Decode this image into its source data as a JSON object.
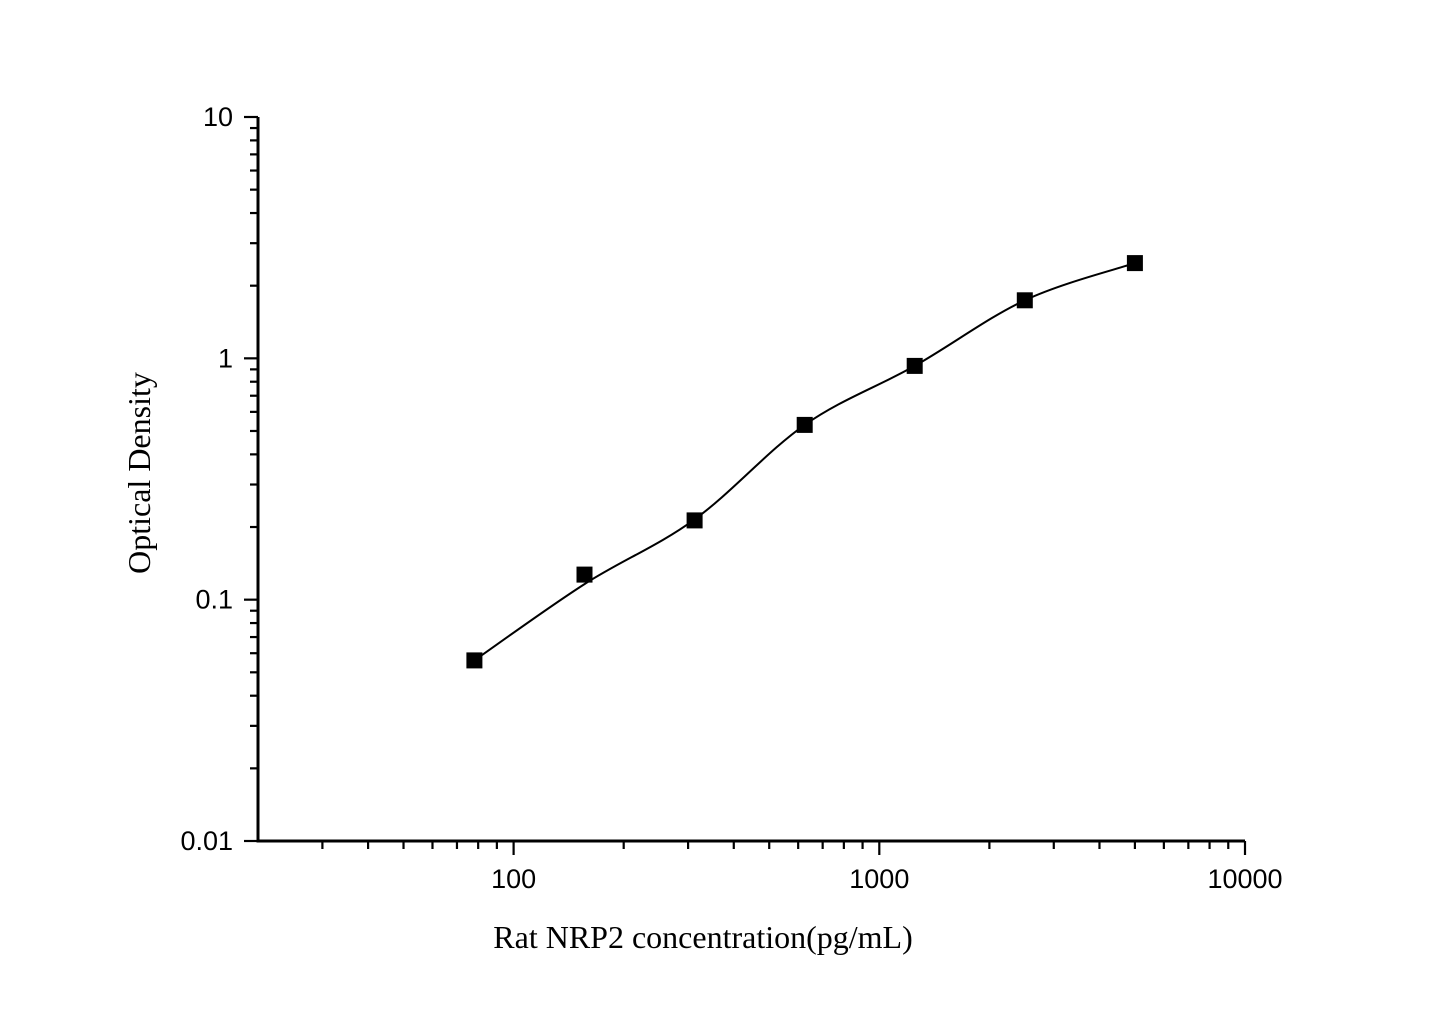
{
  "page": {
    "background_color": "#ffffff",
    "foreground_color": "#000000"
  },
  "chart_data": {
    "type": "line",
    "title": "",
    "xlabel": "Rat NRP2 concentration(pg/mL)",
    "ylabel": "Optical Density",
    "x_scale": "log",
    "y_scale": "log",
    "xlim": [
      20,
      10000
    ],
    "ylim": [
      0.01,
      10
    ],
    "x_major_ticks": [
      100,
      1000,
      10000
    ],
    "x_tick_labels": [
      "100",
      "1000",
      "10000"
    ],
    "y_major_ticks": [
      10,
      1,
      0.1,
      0.01
    ],
    "y_tick_labels": [
      "10",
      "1",
      "0.1",
      "0.01"
    ],
    "grid": false,
    "legend": "none",
    "line_color": "#000000",
    "marker": "square",
    "marker_color": "#000000",
    "series": [
      {
        "name": "standard-curve",
        "x": [
          78.125,
          156.25,
          312.5,
          625,
          1250,
          2500,
          5000
        ],
        "y": [
          0.056,
          0.127,
          0.213,
          0.53,
          0.93,
          1.74,
          2.48
        ]
      }
    ],
    "fit_curve": {
      "comment_visible_only": "smooth fitted line drawn on plot; passes slightly below the 156.25 marker",
      "x": [
        78.125,
        156.25,
        312.5,
        625,
        1250,
        2500,
        5000
      ],
      "y": [
        0.056,
        0.116,
        0.215,
        0.53,
        0.93,
        1.74,
        2.48
      ]
    }
  }
}
